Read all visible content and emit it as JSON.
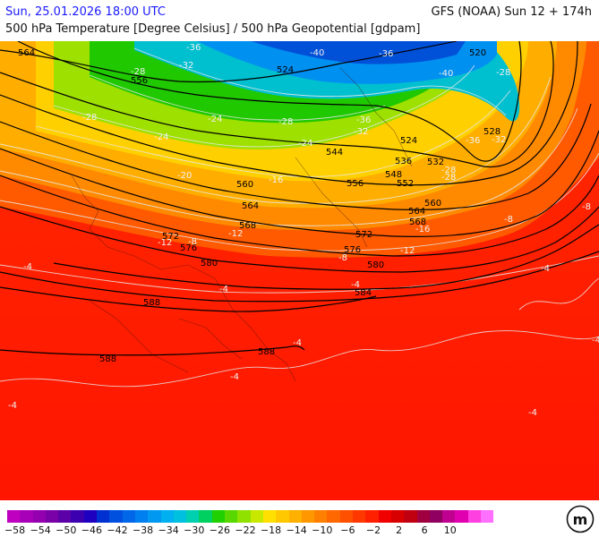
{
  "header": {
    "datetime": "Sun, 25.01.2026 18:00 UTC",
    "model_run": "GFS (NOAA) Sun 12 + 174h",
    "parameter": "500 hPa Temperature [Degree Celsius] / 500 hPa Geopotential [gdpam]"
  },
  "legend": {
    "colors": [
      "#c000c0",
      "#a800b8",
      "#9400b0",
      "#7a00a8",
      "#5c00a8",
      "#3c00b0",
      "#1e00c0",
      "#0030d0",
      "#0050e0",
      "#0068e8",
      "#0080f0",
      "#0098f0",
      "#00b0f0",
      "#00c0e0",
      "#00d0b0",
      "#00d060",
      "#20d000",
      "#58d800",
      "#90e000",
      "#c8e800",
      "#ffe000",
      "#ffc800",
      "#ffb000",
      "#ff9800",
      "#ff8000",
      "#ff6800",
      "#ff5000",
      "#ff3800",
      "#ff2000",
      "#f00000",
      "#d80000",
      "#c00010",
      "#a00040",
      "#900060",
      "#c00090",
      "#e000b0",
      "#ff40e0",
      "#ff70ff"
    ],
    "tick_labels": [
      "-58",
      "-54",
      "-50",
      "-46",
      "-42",
      "-38",
      "-34",
      "-30",
      "-26",
      "-22",
      "-18",
      "-14",
      "-10",
      "-6",
      "-2",
      "2",
      "6",
      "10"
    ],
    "logo_text": "m"
  },
  "map": {
    "geopotential_labels": [
      "564",
      "556",
      "524",
      "520",
      "528",
      "524",
      "536",
      "532",
      "544",
      "548",
      "552",
      "556",
      "560",
      "560",
      "564",
      "564",
      "568",
      "568",
      "572",
      "572",
      "576",
      "576",
      "580",
      "580",
      "584",
      "588",
      "588",
      "588"
    ],
    "temperature_labels": [
      "-36",
      "-32",
      "-28",
      "-28",
      "-24",
      "-24",
      "-24",
      "-28",
      "-36",
      "-36",
      "-40",
      "-40",
      "-32",
      "-36",
      "-32",
      "-28",
      "-28",
      "-28",
      "-20",
      "-16",
      "-16",
      "-12",
      "-12",
      "-12",
      "-8",
      "-8",
      "-8",
      "-8",
      "-4",
      "-4",
      "-4",
      "-4",
      "-4",
      "-4",
      "-4",
      "-4",
      "-4"
    ]
  }
}
